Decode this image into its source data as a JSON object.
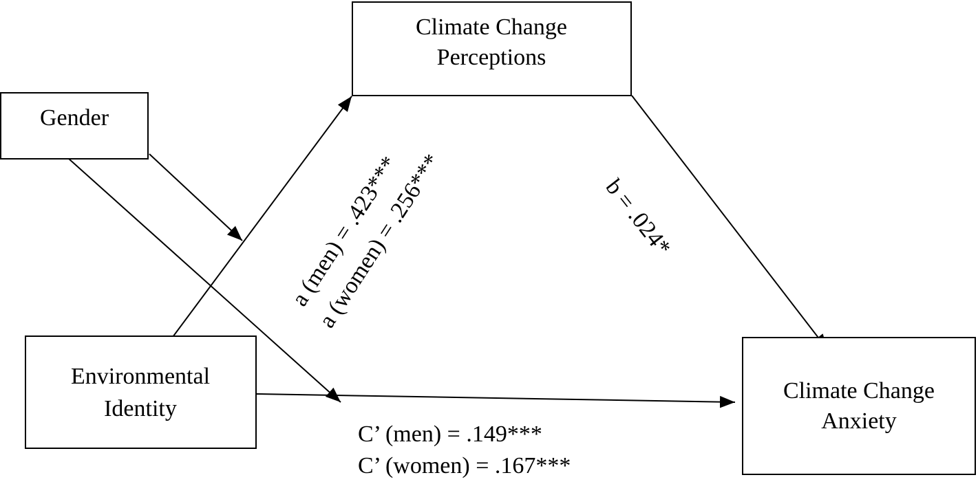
{
  "nodes": [
    {
      "id": "perceptions",
      "lines": [
        "Climate Change",
        "Perceptions"
      ]
    },
    {
      "id": "gender",
      "lines": [
        "Gender"
      ]
    },
    {
      "id": "identity",
      "lines": [
        "Environmental",
        "Identity"
      ]
    },
    {
      "id": "anxiety",
      "lines": [
        "Climate Change",
        "Anxiety"
      ]
    }
  ],
  "edges": {
    "a": [
      "a (men) = .423***",
      "a (women) = .256***"
    ],
    "b": [
      "b = .024*"
    ],
    "c": [
      "C’ (men) = .149***",
      "C’ (women) = .167***"
    ]
  }
}
